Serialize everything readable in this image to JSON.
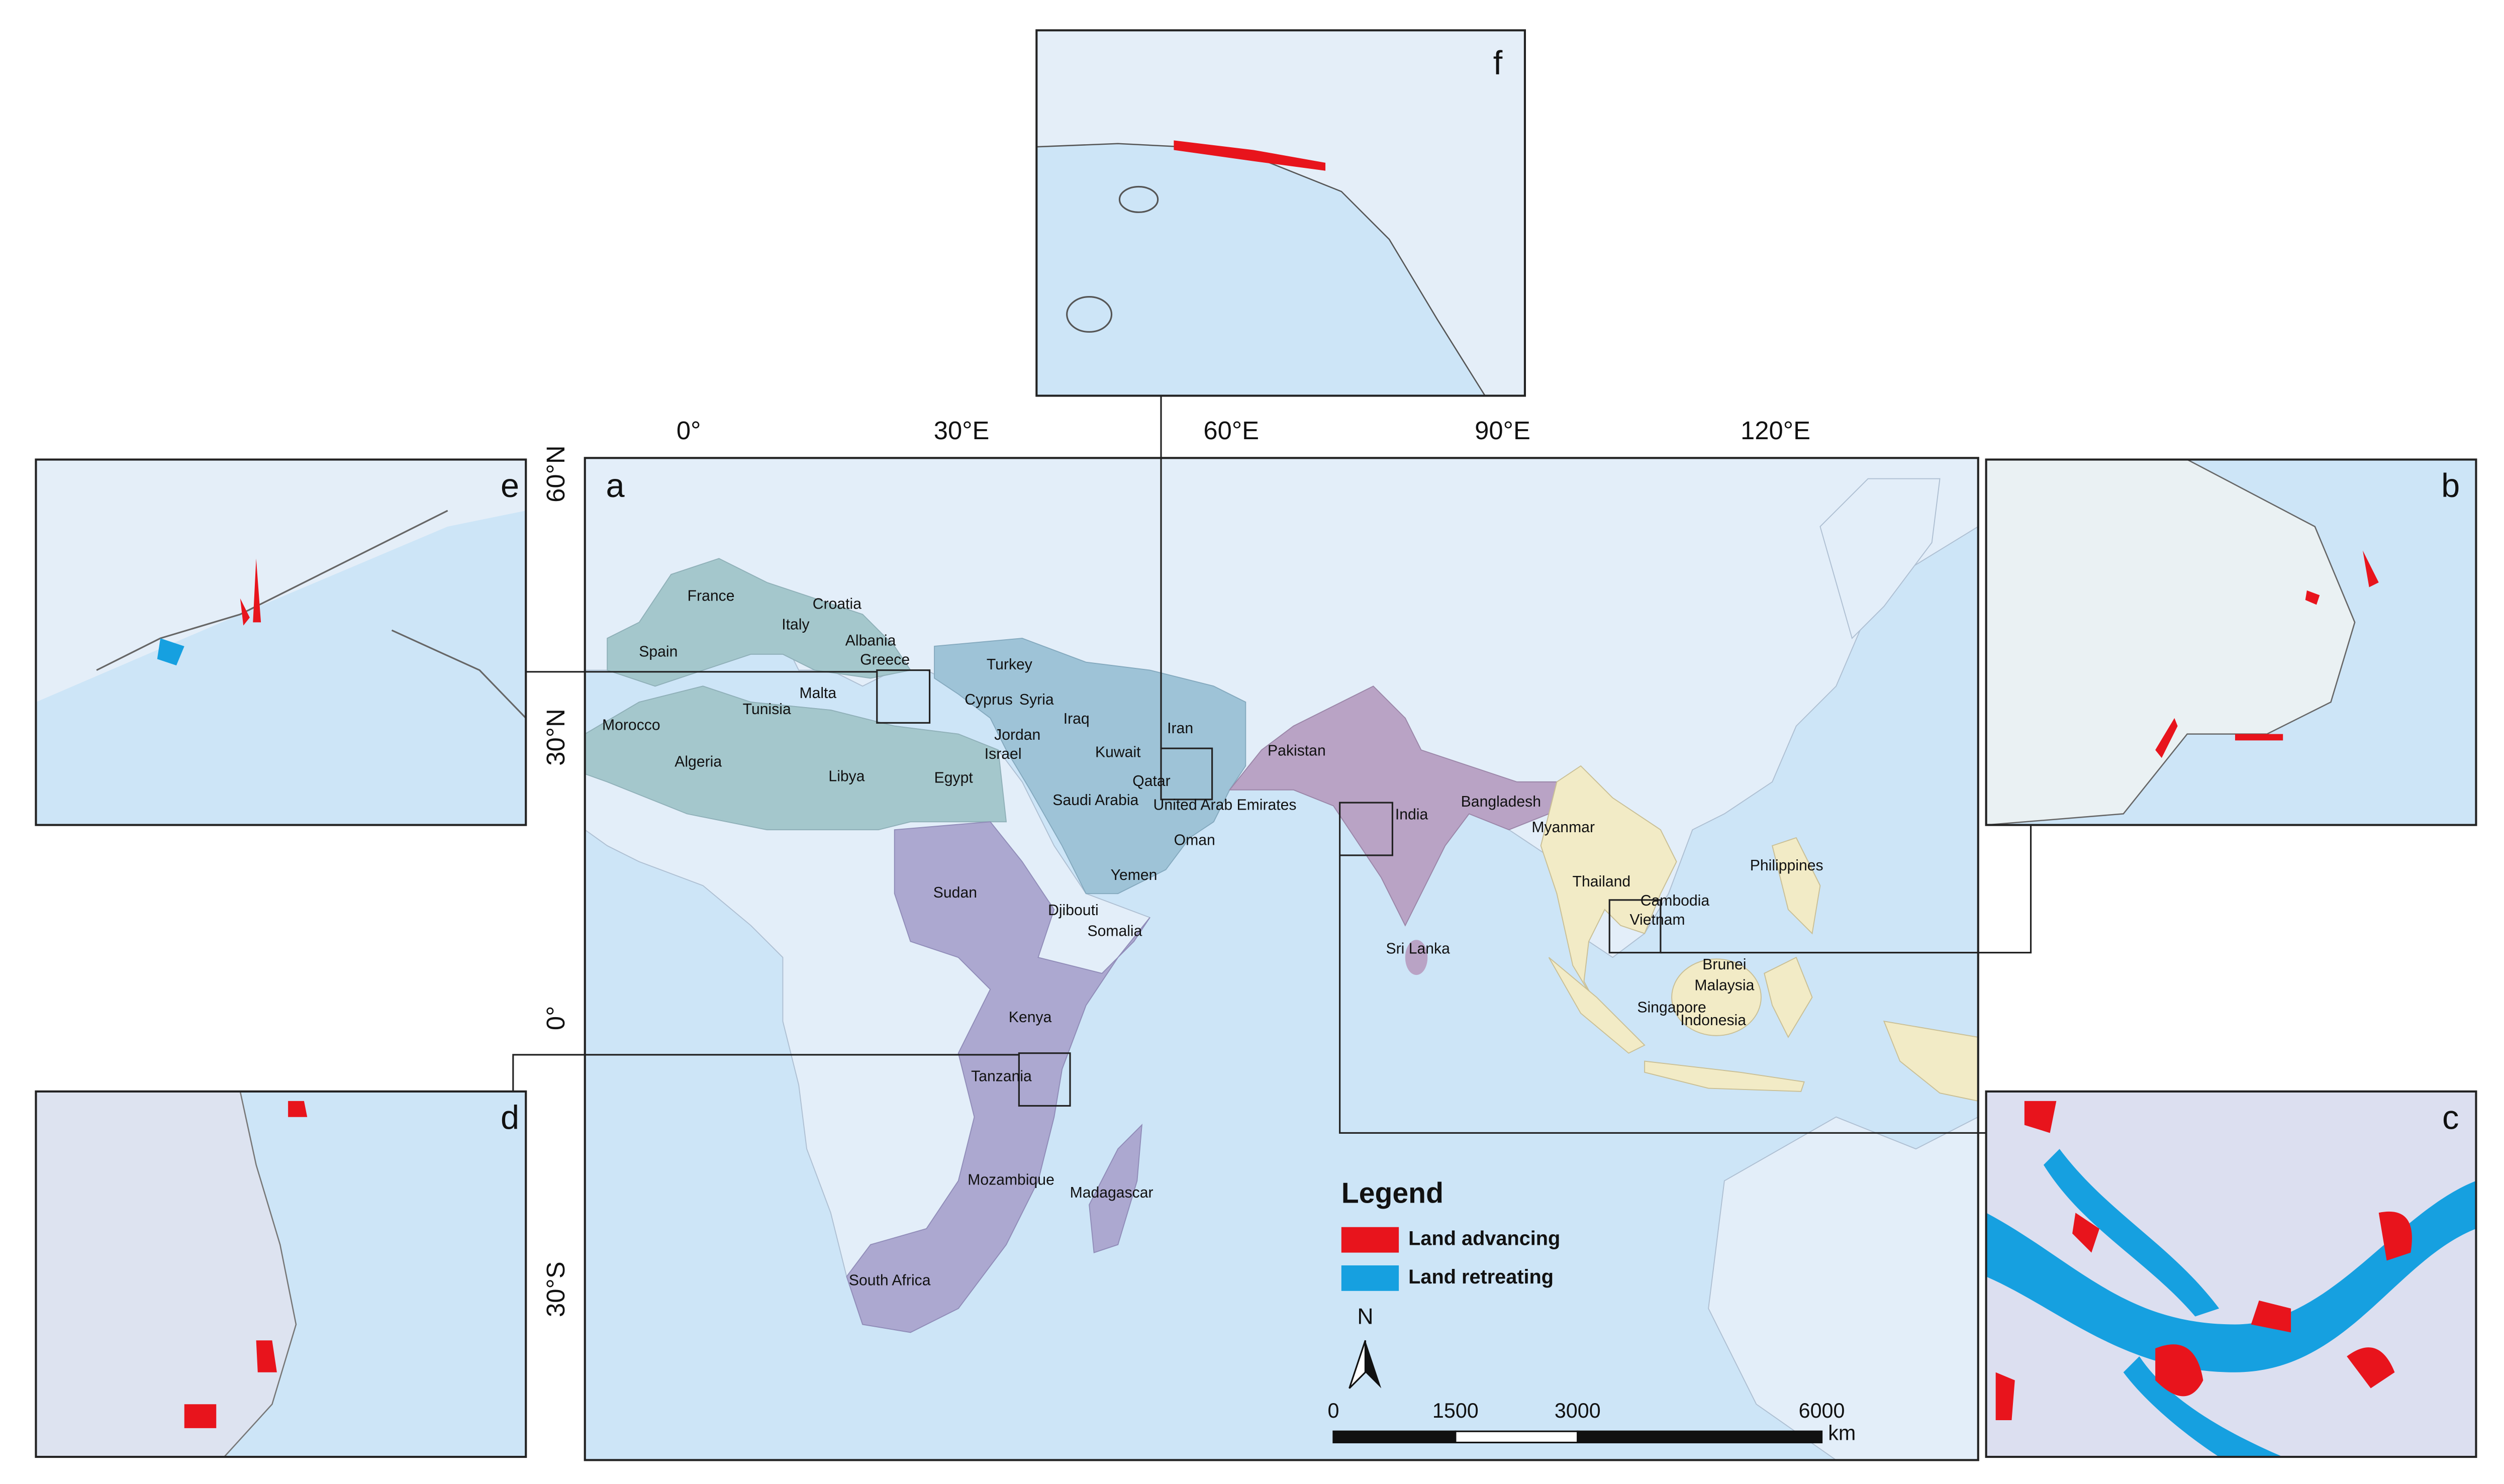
{
  "panels": [
    "a",
    "b",
    "c",
    "d",
    "e",
    "f"
  ],
  "longitude_labels": [
    "0°",
    "30°E",
    "60°E",
    "90°E",
    "120°E"
  ],
  "latitude_labels": [
    "60°N",
    "30°N",
    "0°",
    "30°S"
  ],
  "countries": [
    "France",
    "Croatia",
    "Italy",
    "Albania",
    "Spain",
    "Greece",
    "Turkey",
    "Malta",
    "Tunisia",
    "Cyprus",
    "Syria",
    "Iraq",
    "Iran",
    "Morocco",
    "Jordan",
    "Israel",
    "Kuwait",
    "Algeria",
    "Libya",
    "Egypt",
    "Qatar",
    "Saudi Arabia",
    "United Arab Emirates",
    "Pakistan",
    "India",
    "Bangladesh",
    "Myanmar",
    "Oman",
    "Yemen",
    "Thailand",
    "Philippines",
    "Sudan",
    "Cambodia",
    "Djibouti",
    "Vietnam",
    "Somalia",
    "Sri Lanka",
    "Brunei",
    "Malaysia",
    "Singapore",
    "Indonesia",
    "Kenya",
    "Tanzania",
    "Mozambique",
    "Madagascar",
    "South Africa"
  ],
  "legend": {
    "title": "Legend",
    "items": [
      {
        "label": "Land advancing",
        "color": "#e8141c"
      },
      {
        "label": "Land retreating",
        "color": "#16a0e0"
      }
    ]
  },
  "north": "N",
  "scale_bar": {
    "ticks": [
      0,
      1500,
      3000,
      6000
    ],
    "unit": "km"
  }
}
